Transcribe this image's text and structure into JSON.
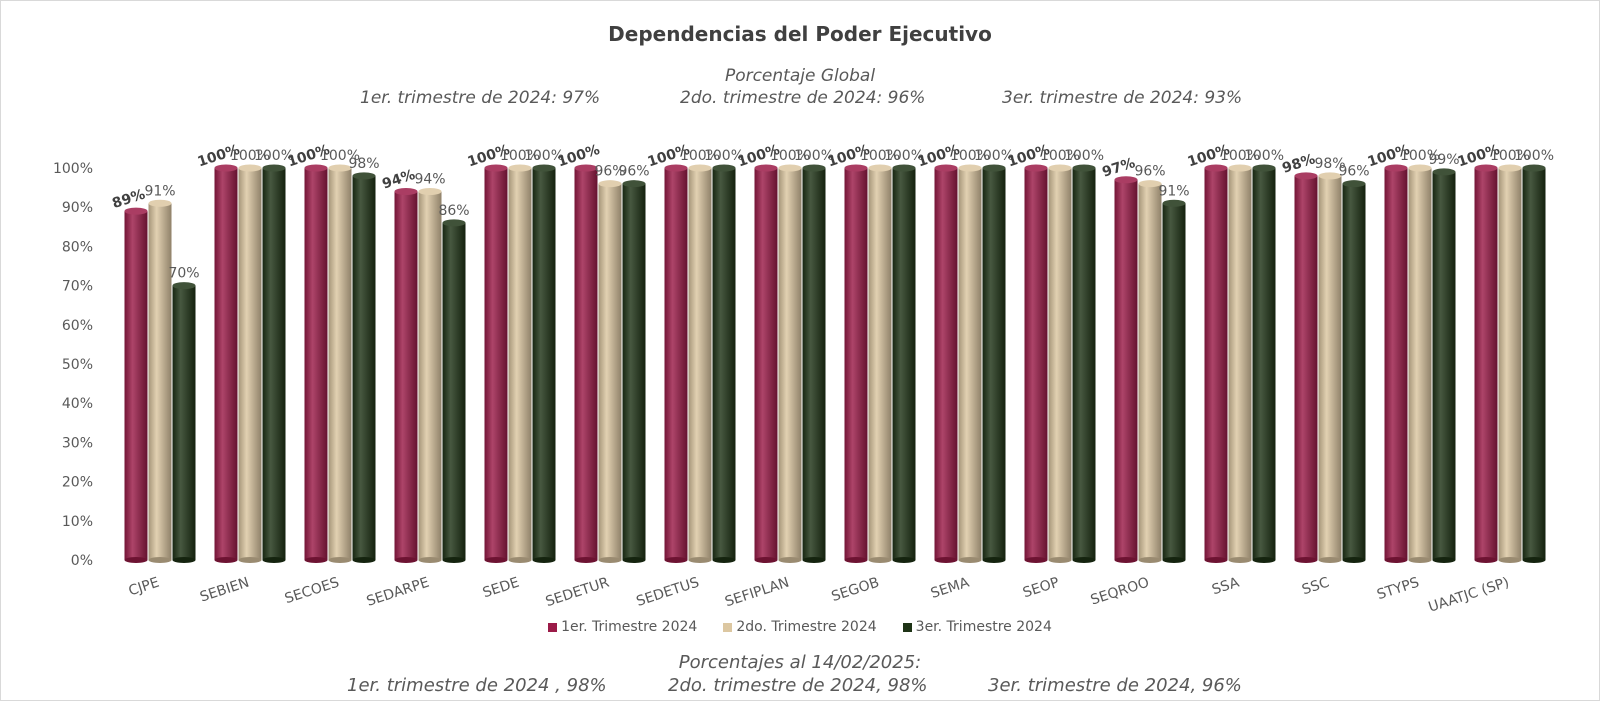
{
  "chart_data": {
    "type": "bar",
    "title": "Dependencias del Poder Ejecutivo",
    "categories": [
      "CJPE",
      "SEBIEN",
      "SECOES",
      "SEDARPE",
      "SEDE",
      "SEDETUR",
      "SEDETUS",
      "SEFIPLAN",
      "SEGOB",
      "SEMA",
      "SEOP",
      "SEQROO",
      "SSA",
      "SSC",
      "STYPS",
      "UAATJC (SP)"
    ],
    "series": [
      {
        "name": "1er. Trimestre 2024",
        "color": "#9b1b48",
        "values": [
          89,
          100,
          100,
          94,
          100,
          100,
          100,
          100,
          100,
          100,
          100,
          97,
          100,
          98,
          100,
          100
        ]
      },
      {
        "name": "2do. Trimestre 2024",
        "color": "#dcc7a1",
        "values": [
          91,
          100,
          100,
          94,
          100,
          96,
          100,
          100,
          100,
          100,
          100,
          96,
          100,
          98,
          100,
          100
        ]
      },
      {
        "name": "3er. Trimestre 2024",
        "color": "#1e3316",
        "values": [
          70,
          100,
          98,
          86,
          100,
          96,
          100,
          100,
          100,
          100,
          100,
          91,
          100,
          96,
          99,
          100
        ]
      }
    ],
    "yticks": [
      "0%",
      "10%",
      "20%",
      "30%",
      "40%",
      "50%",
      "60%",
      "70%",
      "80%",
      "90%",
      "100%"
    ],
    "ylim": [
      0,
      100
    ],
    "grid": false,
    "legend": "bottom"
  },
  "header": {
    "global_title": "Porcentaje Global",
    "q1": "1er. trimestre de 2024: 97%",
    "q2": "2do. trimestre de 2024: 96%",
    "q3": "3er. trimestre de 2024: 93%"
  },
  "footnote": {
    "title": "Porcentajes al 14/02/2025:",
    "q1": "1er. trimestre de 2024 , 98%",
    "q2": "2do. trimestre de 2024, 98%",
    "q3": "3er. trimestre de 2024, 96%"
  }
}
